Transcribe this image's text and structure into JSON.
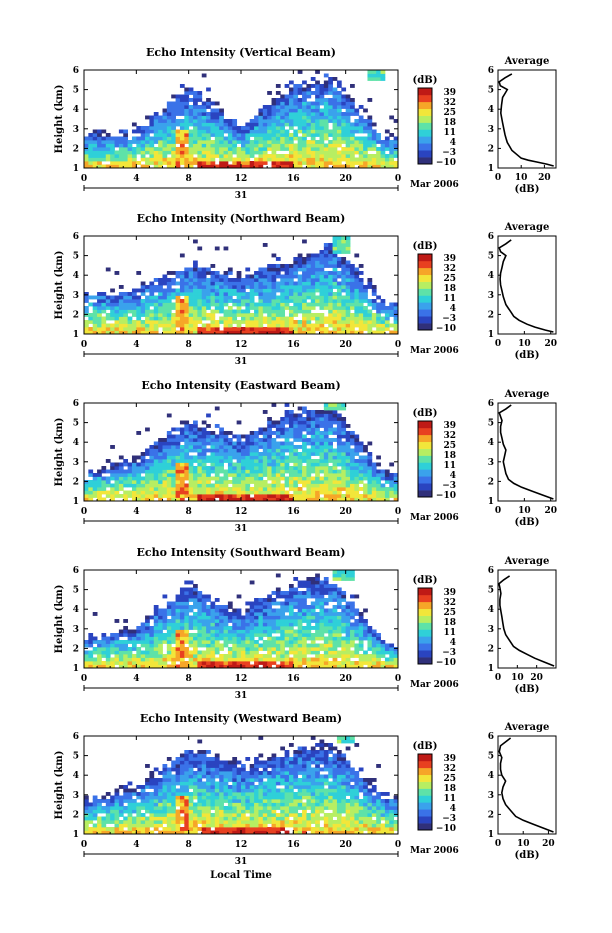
{
  "figure": {
    "x_title": "Local Time",
    "date_label": "31",
    "month_label": "Mar 2006",
    "colorbar_unit": "(dB)",
    "colorbar_ticks": [
      "39",
      "32",
      "25",
      "18",
      "11",
      "4",
      "−3",
      "−10"
    ],
    "colormap": [
      "#30307a",
      "#2a44c0",
      "#3a72e8",
      "#3aa2ec",
      "#2fd0d8",
      "#5ee2a8",
      "#b7ee62",
      "#f2e63a",
      "#f6a628",
      "#e84020",
      "#bf1a16"
    ],
    "average_title": "Average",
    "average_xlabel": "(dB)",
    "height_ylabel": "Height (km)"
  },
  "chart_data": [
    {
      "type": "heatmap",
      "title": "Echo Intensity (Vertical Beam)",
      "xlabel": "Local Time",
      "ylabel": "Height (km)",
      "zunit": "dB",
      "x_ticks": [
        "0",
        "4",
        "8",
        "12",
        "16",
        "20",
        "0"
      ],
      "y_ticks": [
        "1",
        "2",
        "3",
        "4",
        "5",
        "6"
      ],
      "xlim": [
        0,
        24
      ],
      "ylim": [
        1,
        6
      ],
      "zlim": [
        -10,
        39
      ],
      "seed": 11,
      "high_cap": [
        21.8,
        23.0,
        5.5,
        6.2
      ],
      "summary": [
        {
          "x": 0,
          "top_km": 2.7
        },
        {
          "x": 4,
          "top_km": 2.8
        },
        {
          "x": 8,
          "top_km": 5.2
        },
        {
          "x": 12,
          "top_km": 3.2
        },
        {
          "x": 16,
          "top_km": 5.3
        },
        {
          "x": 19,
          "top_km": 5.6
        },
        {
          "x": 23,
          "top_km": 2.6
        }
      ]
    },
    {
      "type": "line",
      "title": "Average",
      "xlabel": "(dB)",
      "ylabel": "Height (km)",
      "x_ticks": [
        "0",
        "10",
        "20"
      ],
      "xlim": [
        0,
        25
      ],
      "ylim": [
        1,
        6
      ],
      "x": [
        24,
        21,
        17,
        13,
        10,
        8,
        6,
        5,
        4,
        3.5,
        3,
        2.5,
        2,
        1.5,
        1.2,
        1.5,
        2,
        3,
        4,
        1,
        0.5,
        3,
        6
      ],
      "y": [
        1.1,
        1.2,
        1.3,
        1.4,
        1.5,
        1.7,
        1.9,
        2.1,
        2.3,
        2.5,
        2.7,
        3.0,
        3.3,
        3.6,
        3.8,
        4.2,
        4.6,
        4.8,
        5.0,
        5.2,
        5.4,
        5.6,
        5.8
      ]
    },
    {
      "type": "heatmap",
      "title": "Echo Intensity (Northward Beam)",
      "xlabel": "Local Time",
      "ylabel": "Height (km)",
      "zunit": "dB",
      "x_ticks": [
        "0",
        "4",
        "8",
        "12",
        "16",
        "20",
        "0"
      ],
      "y_ticks": [
        "1",
        "2",
        "3",
        "4",
        "5",
        "6"
      ],
      "xlim": [
        0,
        24
      ],
      "ylim": [
        1,
        6
      ],
      "zlim": [
        -10,
        39
      ],
      "seed": 23,
      "high_cap": [
        19.0,
        20.2,
        5.1,
        6.0
      ],
      "summary": [
        {
          "x": 0,
          "top_km": 3.1
        },
        {
          "x": 4,
          "top_km": 3.2
        },
        {
          "x": 8,
          "top_km": 4.6
        },
        {
          "x": 12,
          "top_km": 4.1
        },
        {
          "x": 16,
          "top_km": 4.8
        },
        {
          "x": 19,
          "top_km": 5.6
        },
        {
          "x": 23,
          "top_km": 2.5
        }
      ]
    },
    {
      "type": "line",
      "title": "Average",
      "xlabel": "(dB)",
      "ylabel": "Height (km)",
      "x_ticks": [
        "0",
        "10",
        "20"
      ],
      "xlim": [
        0,
        22
      ],
      "ylim": [
        1,
        6
      ],
      "x": [
        21,
        18,
        14,
        11,
        8,
        6,
        5,
        4,
        3,
        2.5,
        2,
        1.5,
        1,
        0.8,
        1,
        1.5,
        2,
        3,
        1,
        0.5,
        3,
        5
      ],
      "y": [
        1.1,
        1.2,
        1.35,
        1.5,
        1.7,
        1.9,
        2.1,
        2.3,
        2.5,
        2.7,
        2.9,
        3.2,
        3.5,
        3.8,
        4.1,
        4.4,
        4.7,
        5.0,
        5.2,
        5.4,
        5.6,
        5.8
      ]
    },
    {
      "type": "heatmap",
      "title": "Echo Intensity (Eastward Beam)",
      "xlabel": "Local Time",
      "ylabel": "Height (km)",
      "zunit": "dB",
      "x_ticks": [
        "0",
        "4",
        "8",
        "12",
        "16",
        "20",
        "0"
      ],
      "y_ticks": [
        "1",
        "2",
        "3",
        "4",
        "5",
        "6"
      ],
      "xlim": [
        0,
        24
      ],
      "ylim": [
        1,
        6
      ],
      "zlim": [
        -10,
        39
      ],
      "seed": 37,
      "high_cap": [
        18.5,
        20.0,
        5.7,
        6.2
      ],
      "summary": [
        {
          "x": 0,
          "top_km": 2.4
        },
        {
          "x": 4,
          "top_km": 3.3
        },
        {
          "x": 8,
          "top_km": 5.1
        },
        {
          "x": 12,
          "top_km": 4.3
        },
        {
          "x": 16,
          "top_km": 5.6
        },
        {
          "x": 19,
          "top_km": 5.8
        },
        {
          "x": 23,
          "top_km": 2.4
        }
      ]
    },
    {
      "type": "line",
      "title": "Average",
      "xlabel": "(dB)",
      "ylabel": "Height (km)",
      "x_ticks": [
        "0",
        "10",
        "20"
      ],
      "xlim": [
        0,
        22
      ],
      "ylim": [
        1,
        6
      ],
      "x": [
        21,
        17,
        13,
        9,
        6,
        4,
        3,
        2.5,
        2,
        2.5,
        3,
        2,
        1.5,
        1,
        1,
        1.5,
        1,
        0.5,
        3,
        5
      ],
      "y": [
        1.1,
        1.3,
        1.5,
        1.7,
        1.9,
        2.1,
        2.4,
        2.7,
        3.0,
        3.3,
        3.6,
        3.9,
        4.2,
        4.5,
        4.8,
        5.1,
        5.3,
        5.5,
        5.7,
        5.9
      ]
    },
    {
      "type": "heatmap",
      "title": "Echo Intensity (Southward Beam)",
      "xlabel": "Local Time",
      "ylabel": "Height (km)",
      "zunit": "dB",
      "x_ticks": [
        "0",
        "4",
        "8",
        "12",
        "16",
        "20",
        "0"
      ],
      "y_ticks": [
        "1",
        "2",
        "3",
        "4",
        "5",
        "6"
      ],
      "xlim": [
        0,
        24
      ],
      "ylim": [
        1,
        6
      ],
      "zlim": [
        -10,
        39
      ],
      "seed": 51,
      "high_cap": [
        19.0,
        20.5,
        5.5,
        6.1
      ],
      "summary": [
        {
          "x": 0,
          "top_km": 2.6
        },
        {
          "x": 4,
          "top_km": 3.0
        },
        {
          "x": 8,
          "top_km": 5.4
        },
        {
          "x": 12,
          "top_km": 3.9
        },
        {
          "x": 16,
          "top_km": 5.3
        },
        {
          "x": 19,
          "top_km": 5.7
        },
        {
          "x": 23,
          "top_km": 2.3
        }
      ]
    },
    {
      "type": "line",
      "title": "Average",
      "xlabel": "(dB)",
      "ylabel": "Height (km)",
      "x_ticks": [
        "0",
        "10",
        "20"
      ],
      "xlim": [
        0,
        30
      ],
      "ylim": [
        1,
        6
      ],
      "x": [
        29,
        24,
        19,
        15,
        11,
        8,
        6,
        4,
        3,
        2.5,
        2,
        1.5,
        1,
        1,
        1.5,
        1,
        0.5,
        3,
        6
      ],
      "y": [
        1.1,
        1.3,
        1.5,
        1.7,
        1.9,
        2.1,
        2.4,
        2.7,
        3.0,
        3.3,
        3.6,
        3.9,
        4.2,
        4.5,
        4.8,
        5.1,
        5.3,
        5.5,
        5.7
      ]
    },
    {
      "type": "heatmap",
      "title": "Echo Intensity (Westward Beam)",
      "xlabel": "Local Time",
      "ylabel": "Height (km)",
      "zunit": "dB",
      "x_ticks": [
        "0",
        "4",
        "8",
        "12",
        "16",
        "20",
        "0"
      ],
      "y_ticks": [
        "1",
        "2",
        "3",
        "4",
        "5",
        "6"
      ],
      "xlim": [
        0,
        24
      ],
      "ylim": [
        1,
        6
      ],
      "zlim": [
        -10,
        39
      ],
      "seed": 67,
      "high_cap": [
        19.5,
        20.5,
        5.6,
        6.1
      ],
      "summary": [
        {
          "x": 0,
          "top_km": 2.8
        },
        {
          "x": 4,
          "top_km": 3.3
        },
        {
          "x": 8,
          "top_km": 5.3
        },
        {
          "x": 12,
          "top_km": 4.5
        },
        {
          "x": 16,
          "top_km": 5.4
        },
        {
          "x": 19,
          "top_km": 5.6
        },
        {
          "x": 23,
          "top_km": 3.0
        }
      ]
    },
    {
      "type": "line",
      "title": "Average",
      "xlabel": "(dB)",
      "ylabel": "Height (km)",
      "x_ticks": [
        "0",
        "10",
        "20"
      ],
      "xlim": [
        0,
        23
      ],
      "ylim": [
        1,
        6
      ],
      "x": [
        22,
        18,
        14,
        10,
        7,
        5,
        3,
        2,
        1.5,
        2,
        3,
        1.5,
        1,
        1,
        1.5,
        0.5,
        1,
        3,
        5
      ],
      "y": [
        1.1,
        1.3,
        1.5,
        1.7,
        1.9,
        2.2,
        2.5,
        2.8,
        3.1,
        3.4,
        3.7,
        4.0,
        4.3,
        4.6,
        4.9,
        5.2,
        5.5,
        5.7,
        5.9
      ]
    }
  ]
}
